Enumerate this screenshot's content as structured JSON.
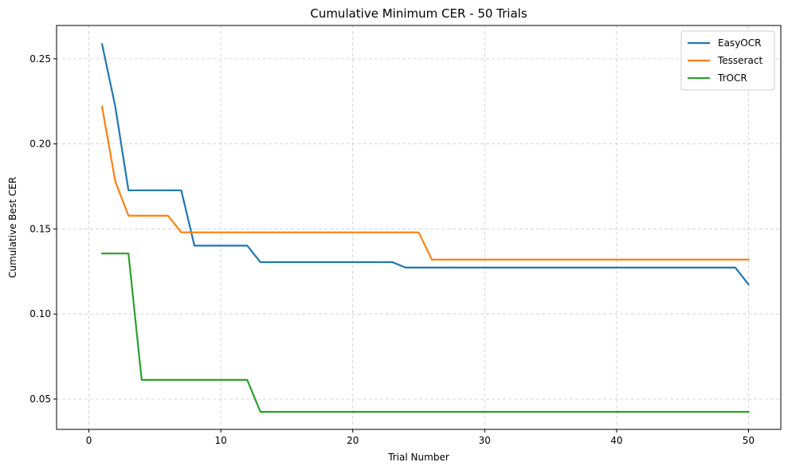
{
  "chart_data": {
    "type": "line",
    "title": "Cumulative Minimum CER - 50 Trials",
    "xlabel": "Trial Number",
    "ylabel": "Cumulative Best CER",
    "xlim": [
      -2.45,
      52.45
    ],
    "ylim": [
      0.0322,
      0.2696
    ],
    "xticks": [
      0,
      10,
      20,
      30,
      40,
      50
    ],
    "xtick_labels": [
      "0",
      "10",
      "20",
      "30",
      "40",
      "50"
    ],
    "yticks": [
      0.05,
      0.1,
      0.15,
      0.2,
      0.25
    ],
    "ytick_labels": [
      "0.05",
      "0.10",
      "0.15",
      "0.20",
      "0.25"
    ],
    "grid": true,
    "grid_style": "dashed",
    "legend_position": "top-right",
    "series": [
      {
        "name": "EasyOCR",
        "color": "#1f77b4",
        "points": [
          [
            1,
            0.2586
          ],
          [
            2,
            0.222
          ],
          [
            3,
            0.1727
          ],
          [
            7,
            0.1727
          ],
          [
            8,
            0.1402
          ],
          [
            12,
            0.1402
          ],
          [
            13,
            0.1305
          ],
          [
            23,
            0.1305
          ],
          [
            24,
            0.1273
          ],
          [
            49,
            0.1273
          ],
          [
            50,
            0.1174
          ]
        ]
      },
      {
        "name": "Tesseract",
        "color": "#ff7f0e",
        "points": [
          [
            1,
            0.2218
          ],
          [
            2,
            0.178
          ],
          [
            3,
            0.1578
          ],
          [
            6,
            0.1578
          ],
          [
            7,
            0.148
          ],
          [
            25,
            0.148
          ],
          [
            26,
            0.132
          ],
          [
            50,
            0.132
          ]
        ]
      },
      {
        "name": "TrOCR",
        "color": "#2ca02c",
        "points": [
          [
            1,
            0.1356
          ],
          [
            3,
            0.1356
          ],
          [
            4,
            0.0613
          ],
          [
            12,
            0.0613
          ],
          [
            13,
            0.0425
          ],
          [
            50,
            0.0425
          ]
        ]
      }
    ]
  }
}
